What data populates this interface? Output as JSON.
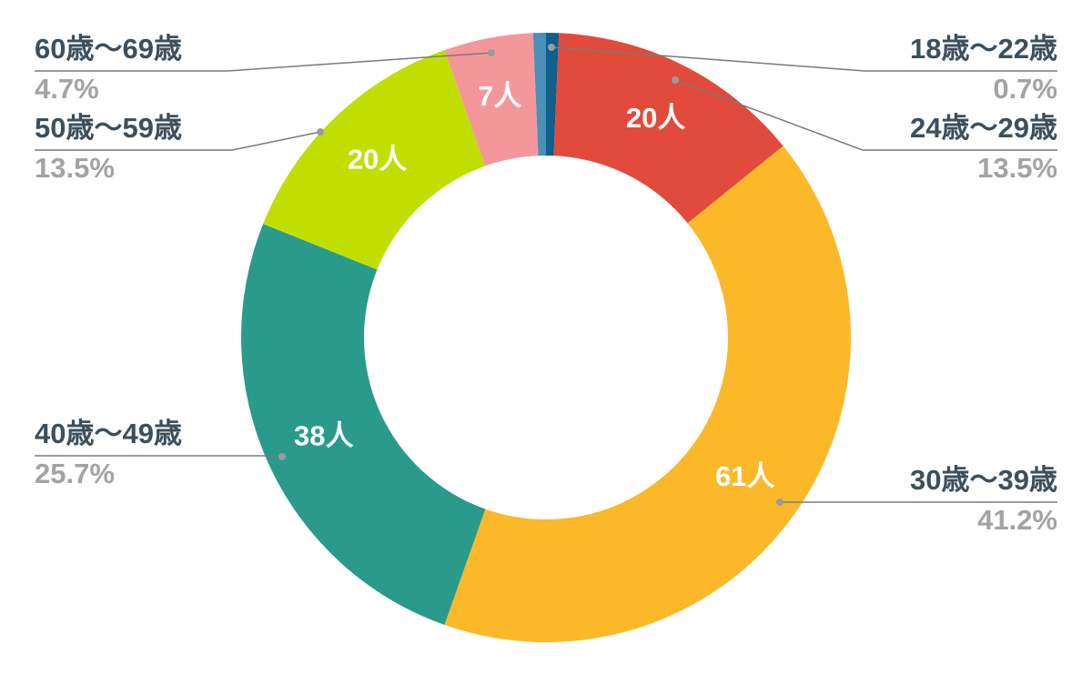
{
  "chart_data": {
    "type": "donut",
    "categories": [
      "18歳〜22歳",
      "24歳〜29歳",
      "30歳〜39歳",
      "40歳〜49歳",
      "50歳〜59歳",
      "60歳〜69歳",
      null
    ],
    "values": [
      1,
      20,
      61,
      38,
      20,
      7,
      1
    ],
    "value_labels": [
      null,
      "20人",
      "61人",
      "38人",
      "20人",
      "7人",
      null
    ],
    "percent_labels": [
      "0.7%",
      "13.5%",
      "41.2%",
      "25.7%",
      "13.5%",
      "4.7%",
      null
    ],
    "colors": [
      "#0f5f8f",
      "#e24a3b",
      "#fbb829",
      "#2a9a8a",
      "#c0df00",
      "#f4979b",
      "#4a90b8"
    ]
  }
}
